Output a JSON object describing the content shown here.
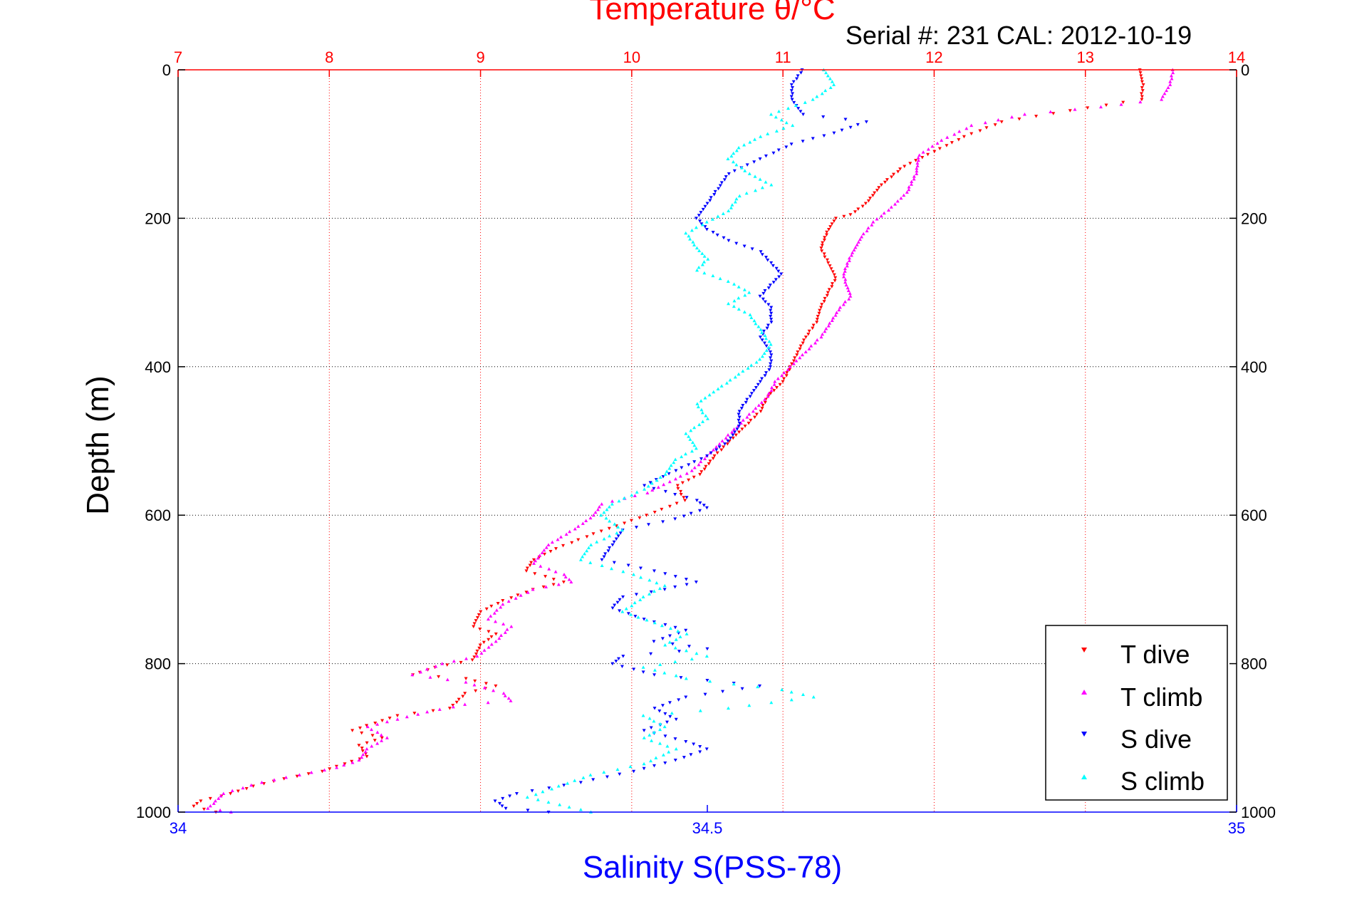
{
  "chart_data": {
    "type": "scatter",
    "header_text": "Serial #: 231   CAL: 2012-10-19",
    "top_axis": {
      "label": "Temperature θ/°C",
      "range": [
        7,
        14
      ],
      "ticks": [
        7,
        8,
        9,
        10,
        11,
        12,
        13,
        14
      ],
      "color": "#ff0000"
    },
    "bottom_axis": {
      "label": "Salinity S(PSS-78)",
      "range": [
        34,
        35
      ],
      "ticks": [
        "34",
        "34.5",
        "35"
      ],
      "tick_values": [
        34,
        34.5,
        35
      ],
      "color": "#0000ff"
    },
    "y_axis": {
      "label": "Depth (m)",
      "range": [
        0,
        1000
      ],
      "reversed": true,
      "ticks": [
        0,
        200,
        400,
        600,
        800,
        1000
      ],
      "color": "#000000"
    },
    "grid": true,
    "legend": {
      "placement": "bottom-right"
    },
    "series": [
      {
        "name": "T dive",
        "axis": "top",
        "color": "#ff0000",
        "marker": "triangle-down",
        "points": [
          [
            13.36,
            0
          ],
          [
            13.38,
            20
          ],
          [
            13.37,
            40
          ],
          [
            12.9,
            55
          ],
          [
            12.45,
            70
          ],
          [
            12.2,
            90
          ],
          [
            12.0,
            110
          ],
          [
            11.8,
            130
          ],
          [
            11.65,
            155
          ],
          [
            11.55,
            180
          ],
          [
            11.45,
            195
          ],
          [
            11.35,
            200
          ],
          [
            11.3,
            215
          ],
          [
            11.25,
            240
          ],
          [
            11.3,
            260
          ],
          [
            11.35,
            280
          ],
          [
            11.3,
            300
          ],
          [
            11.25,
            320
          ],
          [
            11.22,
            340
          ],
          [
            11.15,
            360
          ],
          [
            11.1,
            380
          ],
          [
            11.05,
            400
          ],
          [
            11.0,
            420
          ],
          [
            10.9,
            440
          ],
          [
            10.85,
            460
          ],
          [
            10.75,
            480
          ],
          [
            10.65,
            500
          ],
          [
            10.55,
            520
          ],
          [
            10.45,
            545
          ],
          [
            10.3,
            560
          ],
          [
            10.35,
            580
          ],
          [
            10.1,
            600
          ],
          [
            9.75,
            625
          ],
          [
            9.5,
            645
          ],
          [
            9.35,
            660
          ],
          [
            9.3,
            675
          ],
          [
            9.55,
            690
          ],
          [
            9.35,
            700
          ],
          [
            9.15,
            715
          ],
          [
            9.0,
            730
          ],
          [
            8.95,
            750
          ],
          [
            9.1,
            760
          ],
          [
            9.0,
            775
          ],
          [
            8.95,
            795
          ],
          [
            8.7,
            805
          ],
          [
            8.55,
            815
          ],
          [
            8.9,
            820
          ],
          [
            9.1,
            830
          ],
          [
            8.9,
            840
          ],
          [
            8.8,
            860
          ],
          [
            8.45,
            870
          ],
          [
            8.3,
            880
          ],
          [
            8.15,
            890
          ],
          [
            8.35,
            900
          ],
          [
            8.2,
            910
          ],
          [
            8.25,
            925
          ],
          [
            8.1,
            935
          ],
          [
            7.95,
            945
          ],
          [
            7.7,
            955
          ],
          [
            7.5,
            965
          ],
          [
            7.35,
            975
          ],
          [
            7.15,
            985
          ],
          [
            7.1,
            992
          ],
          [
            7.25,
            1000
          ]
        ]
      },
      {
        "name": "T climb",
        "axis": "top",
        "color": "#ff00ff",
        "marker": "triangle-up",
        "points": [
          [
            13.58,
            0
          ],
          [
            13.56,
            20
          ],
          [
            13.5,
            40
          ],
          [
            13.1,
            50
          ],
          [
            12.6,
            60
          ],
          [
            12.25,
            75
          ],
          [
            12.05,
            95
          ],
          [
            11.9,
            115
          ],
          [
            11.88,
            140
          ],
          [
            11.82,
            165
          ],
          [
            11.72,
            185
          ],
          [
            11.6,
            205
          ],
          [
            11.52,
            225
          ],
          [
            11.45,
            250
          ],
          [
            11.4,
            275
          ],
          [
            11.42,
            290
          ],
          [
            11.45,
            305
          ],
          [
            11.38,
            320
          ],
          [
            11.3,
            345
          ],
          [
            11.25,
            360
          ],
          [
            11.15,
            380
          ],
          [
            11.05,
            400
          ],
          [
            10.95,
            420
          ],
          [
            10.9,
            440
          ],
          [
            10.8,
            460
          ],
          [
            10.7,
            480
          ],
          [
            10.6,
            500
          ],
          [
            10.5,
            520
          ],
          [
            10.4,
            540
          ],
          [
            10.25,
            555
          ],
          [
            10.1,
            570
          ],
          [
            9.8,
            585
          ],
          [
            9.75,
            600
          ],
          [
            9.65,
            615
          ],
          [
            9.45,
            640
          ],
          [
            9.35,
            665
          ],
          [
            9.55,
            680
          ],
          [
            9.6,
            690
          ],
          [
            9.35,
            700
          ],
          [
            9.15,
            720
          ],
          [
            9.05,
            740
          ],
          [
            9.2,
            750
          ],
          [
            9.1,
            770
          ],
          [
            8.98,
            790
          ],
          [
            8.75,
            800
          ],
          [
            8.55,
            815
          ],
          [
            8.9,
            825
          ],
          [
            9.15,
            840
          ],
          [
            9.2,
            850
          ],
          [
            8.9,
            855
          ],
          [
            8.65,
            865
          ],
          [
            8.45,
            875
          ],
          [
            8.25,
            885
          ],
          [
            8.38,
            900
          ],
          [
            8.25,
            915
          ],
          [
            8.2,
            930
          ],
          [
            8.05,
            940
          ],
          [
            7.8,
            950
          ],
          [
            7.55,
            960
          ],
          [
            7.3,
            975
          ],
          [
            7.25,
            985
          ],
          [
            7.2,
            995
          ],
          [
            7.35,
            1000
          ]
        ]
      },
      {
        "name": "S dive",
        "axis": "bottom",
        "color": "#0000ff",
        "marker": "triangle-down",
        "points": [
          [
            34.59,
            0
          ],
          [
            34.58,
            20
          ],
          [
            34.58,
            40
          ],
          [
            34.59,
            60
          ],
          [
            34.65,
            70
          ],
          [
            34.62,
            85
          ],
          [
            34.58,
            100
          ],
          [
            34.55,
            120
          ],
          [
            34.52,
            140
          ],
          [
            34.51,
            160
          ],
          [
            34.5,
            180
          ],
          [
            34.49,
            200
          ],
          [
            34.5,
            215
          ],
          [
            34.52,
            230
          ],
          [
            34.55,
            245
          ],
          [
            34.56,
            260
          ],
          [
            34.57,
            275
          ],
          [
            34.56,
            290
          ],
          [
            34.55,
            305
          ],
          [
            34.56,
            320
          ],
          [
            34.56,
            340
          ],
          [
            34.55,
            360
          ],
          [
            34.56,
            380
          ],
          [
            34.56,
            400
          ],
          [
            34.55,
            420
          ],
          [
            34.54,
            440
          ],
          [
            34.53,
            460
          ],
          [
            34.53,
            480
          ],
          [
            34.52,
            500
          ],
          [
            34.5,
            520
          ],
          [
            34.47,
            540
          ],
          [
            34.44,
            560
          ],
          [
            34.49,
            580
          ],
          [
            34.5,
            590
          ],
          [
            34.47,
            605
          ],
          [
            34.42,
            620
          ],
          [
            34.41,
            640
          ],
          [
            34.4,
            660
          ],
          [
            34.45,
            675
          ],
          [
            34.49,
            690
          ],
          [
            34.46,
            700
          ],
          [
            34.42,
            710
          ],
          [
            34.41,
            725
          ],
          [
            34.44,
            740
          ],
          [
            34.48,
            755
          ],
          [
            34.45,
            770
          ],
          [
            34.5,
            780
          ],
          [
            34.42,
            790
          ],
          [
            34.41,
            800
          ],
          [
            34.45,
            815
          ],
          [
            34.55,
            830
          ],
          [
            34.48,
            845
          ],
          [
            34.45,
            860
          ],
          [
            34.47,
            875
          ],
          [
            34.44,
            890
          ],
          [
            34.48,
            905
          ],
          [
            34.5,
            915
          ],
          [
            34.47,
            930
          ],
          [
            34.43,
            945
          ],
          [
            34.38,
            960
          ],
          [
            34.32,
            975
          ],
          [
            34.3,
            985
          ],
          [
            34.31,
            995
          ],
          [
            34.35,
            1000
          ]
        ]
      },
      {
        "name": "S climb",
        "axis": "bottom",
        "color": "#00ffff",
        "marker": "triangle-up",
        "points": [
          [
            34.61,
            0
          ],
          [
            34.62,
            20
          ],
          [
            34.6,
            40
          ],
          [
            34.56,
            60
          ],
          [
            34.58,
            75
          ],
          [
            34.55,
            90
          ],
          [
            34.53,
            105
          ],
          [
            34.52,
            120
          ],
          [
            34.54,
            140
          ],
          [
            34.56,
            155
          ],
          [
            34.53,
            170
          ],
          [
            34.52,
            190
          ],
          [
            34.5,
            205
          ],
          [
            34.48,
            220
          ],
          [
            34.49,
            240
          ],
          [
            34.5,
            255
          ],
          [
            34.49,
            270
          ],
          [
            34.52,
            285
          ],
          [
            34.54,
            300
          ],
          [
            34.52,
            315
          ],
          [
            34.54,
            330
          ],
          [
            34.55,
            350
          ],
          [
            34.56,
            370
          ],
          [
            34.55,
            390
          ],
          [
            34.53,
            410
          ],
          [
            34.51,
            430
          ],
          [
            34.49,
            450
          ],
          [
            34.5,
            470
          ],
          [
            34.48,
            490
          ],
          [
            34.49,
            510
          ],
          [
            34.47,
            525
          ],
          [
            34.46,
            545
          ],
          [
            34.44,
            565
          ],
          [
            34.41,
            585
          ],
          [
            34.4,
            600
          ],
          [
            34.42,
            620
          ],
          [
            34.39,
            640
          ],
          [
            34.38,
            660
          ],
          [
            34.43,
            680
          ],
          [
            34.46,
            695
          ],
          [
            34.44,
            710
          ],
          [
            34.42,
            730
          ],
          [
            34.45,
            745
          ],
          [
            34.48,
            760
          ],
          [
            34.46,
            775
          ],
          [
            34.5,
            790
          ],
          [
            34.44,
            805
          ],
          [
            34.48,
            820
          ],
          [
            34.57,
            835
          ],
          [
            34.6,
            845
          ],
          [
            34.52,
            860
          ],
          [
            34.44,
            870
          ],
          [
            34.46,
            885
          ],
          [
            34.44,
            900
          ],
          [
            34.47,
            915
          ],
          [
            34.44,
            935
          ],
          [
            34.39,
            950
          ],
          [
            34.36,
            965
          ],
          [
            34.33,
            980
          ],
          [
            34.36,
            990
          ],
          [
            34.39,
            1000
          ]
        ]
      }
    ]
  }
}
